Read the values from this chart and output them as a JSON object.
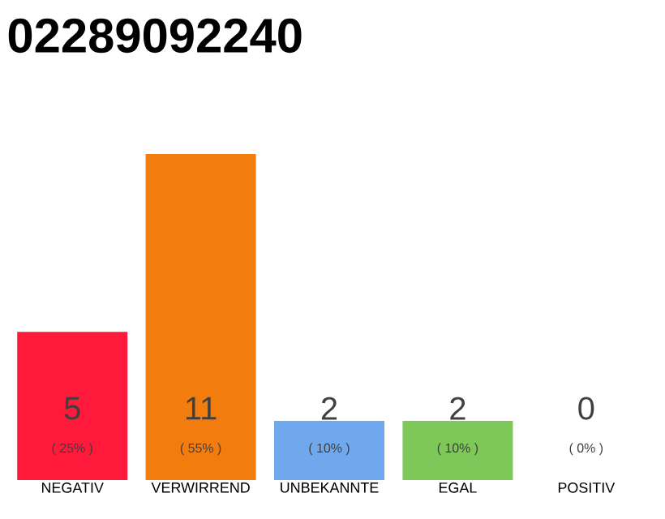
{
  "chart_data": {
    "type": "bar",
    "title": "02289092240",
    "categories": [
      "NEGATIV",
      "VERWIRREND",
      "UNBEKANNTE",
      "EGAL",
      "POSITIV"
    ],
    "values": [
      5,
      11,
      2,
      2,
      0
    ],
    "colors": [
      "#ff1a3c",
      "#f27c0e",
      "#6fa8ec",
      "#7ec85a",
      "#2e9b3e"
    ],
    "data_labels": true,
    "annotations": [
      "( 25% )",
      "( 55% )",
      "( 10% )",
      "( 10% )",
      "( 0% )"
    ]
  }
}
